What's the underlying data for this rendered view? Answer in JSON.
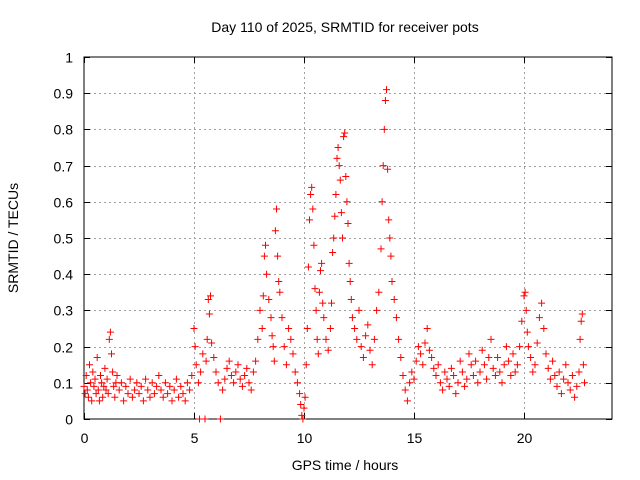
{
  "chart_data": {
    "type": "scatter",
    "title": "Day 110 of 2025, SRMTID for receiver pots",
    "xlabel": "GPS time / hours",
    "ylabel": "SRMTID / TECUs",
    "xlim": [
      0,
      24
    ],
    "ylim": [
      0,
      1
    ],
    "xticks": [
      0,
      5,
      10,
      15,
      20
    ],
    "yticks": [
      0,
      0.1,
      0.2,
      0.3,
      0.4,
      0.5,
      0.6,
      0.7,
      0.8,
      0.9,
      1
    ],
    "grid": true,
    "marker": "+",
    "color": "#ff0000",
    "series": [
      {
        "name": "SRMTID",
        "points": [
          [
            0.0,
            0.09
          ],
          [
            0.05,
            0.07
          ],
          [
            0.1,
            0.12
          ],
          [
            0.15,
            0.08
          ],
          [
            0.2,
            0.06
          ],
          [
            0.25,
            0.15
          ],
          [
            0.3,
            0.1
          ],
          [
            0.35,
            0.05
          ],
          [
            0.4,
            0.13
          ],
          [
            0.45,
            0.09
          ],
          [
            0.5,
            0.11
          ],
          [
            0.55,
            0.07
          ],
          [
            0.6,
            0.17
          ],
          [
            0.65,
            0.08
          ],
          [
            0.7,
            0.05
          ],
          [
            0.75,
            0.12
          ],
          [
            0.8,
            0.1
          ],
          [
            0.85,
            0.06
          ],
          [
            0.9,
            0.09
          ],
          [
            0.95,
            0.14
          ],
          [
            1.0,
            0.08
          ],
          [
            1.05,
            0.11
          ],
          [
            1.1,
            0.07
          ],
          [
            1.15,
            0.22
          ],
          [
            1.2,
            0.24
          ],
          [
            1.25,
            0.18
          ],
          [
            1.3,
            0.13
          ],
          [
            1.35,
            0.09
          ],
          [
            1.4,
            0.06
          ],
          [
            1.45,
            0.1
          ],
          [
            1.5,
            0.12
          ],
          [
            1.6,
            0.08
          ],
          [
            1.7,
            0.1
          ],
          [
            1.8,
            0.05
          ],
          [
            1.9,
            0.09
          ],
          [
            2.0,
            0.07
          ],
          [
            2.1,
            0.11
          ],
          [
            2.2,
            0.06
          ],
          [
            2.3,
            0.08
          ],
          [
            2.4,
            0.1
          ],
          [
            2.5,
            0.07
          ],
          [
            2.6,
            0.09
          ],
          [
            2.7,
            0.05
          ],
          [
            2.8,
            0.11
          ],
          [
            2.9,
            0.08
          ],
          [
            3.0,
            0.06
          ],
          [
            3.1,
            0.1
          ],
          [
            3.2,
            0.07
          ],
          [
            3.3,
            0.09
          ],
          [
            3.4,
            0.12
          ],
          [
            3.5,
            0.08
          ],
          [
            3.6,
            0.06
          ],
          [
            3.7,
            0.1
          ],
          [
            3.8,
            0.07
          ],
          [
            3.9,
            0.09
          ],
          [
            4.0,
            0.05
          ],
          [
            4.1,
            0.08
          ],
          [
            4.2,
            0.11
          ],
          [
            4.3,
            0.06
          ],
          [
            4.4,
            0.09
          ],
          [
            4.5,
            0.07
          ],
          [
            4.6,
            0.05
          ],
          [
            4.7,
            0.1
          ],
          [
            4.8,
            0.08
          ],
          [
            4.9,
            0.12
          ],
          [
            5.0,
            0.25
          ],
          [
            5.05,
            0.2
          ],
          [
            5.1,
            0.15
          ],
          [
            5.2,
            0.1
          ],
          [
            5.25,
            0.0
          ],
          [
            5.3,
            0.13
          ],
          [
            5.4,
            0.18
          ],
          [
            5.5,
            0.0
          ],
          [
            5.55,
            0.16
          ],
          [
            5.6,
            0.22
          ],
          [
            5.65,
            0.33
          ],
          [
            5.7,
            0.29
          ],
          [
            5.75,
            0.34
          ],
          [
            5.8,
            0.21
          ],
          [
            5.9,
            0.17
          ],
          [
            6.0,
            0.13
          ],
          [
            6.1,
            0.1
          ],
          [
            6.2,
            0.0
          ],
          [
            6.3,
            0.08
          ],
          [
            6.4,
            0.11
          ],
          [
            6.5,
            0.14
          ],
          [
            6.6,
            0.16
          ],
          [
            6.7,
            0.12
          ],
          [
            6.8,
            0.1
          ],
          [
            6.9,
            0.13
          ],
          [
            7.0,
            0.15
          ],
          [
            7.1,
            0.11
          ],
          [
            7.2,
            0.09
          ],
          [
            7.3,
            0.12
          ],
          [
            7.4,
            0.14
          ],
          [
            7.5,
            0.1
          ],
          [
            7.6,
            0.08
          ],
          [
            7.7,
            0.13
          ],
          [
            7.8,
            0.16
          ],
          [
            7.9,
            0.22
          ],
          [
            8.0,
            0.3
          ],
          [
            8.1,
            0.25
          ],
          [
            8.15,
            0.34
          ],
          [
            8.2,
            0.45
          ],
          [
            8.25,
            0.48
          ],
          [
            8.3,
            0.4
          ],
          [
            8.4,
            0.33
          ],
          [
            8.5,
            0.28
          ],
          [
            8.55,
            0.23
          ],
          [
            8.6,
            0.2
          ],
          [
            8.65,
            0.16
          ],
          [
            8.7,
            0.52
          ],
          [
            8.75,
            0.58
          ],
          [
            8.8,
            0.45
          ],
          [
            8.85,
            0.38
          ],
          [
            8.9,
            0.35
          ],
          [
            9.0,
            0.28
          ],
          [
            9.1,
            0.2
          ],
          [
            9.2,
            0.15
          ],
          [
            9.3,
            0.25
          ],
          [
            9.4,
            0.22
          ],
          [
            9.5,
            0.18
          ],
          [
            9.6,
            0.13
          ],
          [
            9.7,
            0.1
          ],
          [
            9.8,
            0.07
          ],
          [
            9.85,
            0.04
          ],
          [
            9.9,
            0.01
          ],
          [
            9.95,
            0.0
          ],
          [
            10.0,
            0.03
          ],
          [
            10.05,
            0.06
          ],
          [
            10.1,
            0.15
          ],
          [
            10.15,
            0.25
          ],
          [
            10.2,
            0.42
          ],
          [
            10.25,
            0.55
          ],
          [
            10.3,
            0.62
          ],
          [
            10.35,
            0.64
          ],
          [
            10.4,
            0.58
          ],
          [
            10.45,
            0.48
          ],
          [
            10.5,
            0.36
          ],
          [
            10.55,
            0.3
          ],
          [
            10.6,
            0.22
          ],
          [
            10.65,
            0.18
          ],
          [
            10.7,
            0.35
          ],
          [
            10.75,
            0.41
          ],
          [
            10.8,
            0.43
          ],
          [
            10.85,
            0.32
          ],
          [
            10.9,
            0.28
          ],
          [
            11.0,
            0.22
          ],
          [
            11.1,
            0.19
          ],
          [
            11.2,
            0.25
          ],
          [
            11.25,
            0.32
          ],
          [
            11.3,
            0.46
          ],
          [
            11.35,
            0.5
          ],
          [
            11.4,
            0.56
          ],
          [
            11.45,
            0.62
          ],
          [
            11.5,
            0.72
          ],
          [
            11.55,
            0.75
          ],
          [
            11.6,
            0.7
          ],
          [
            11.65,
            0.66
          ],
          [
            11.7,
            0.57
          ],
          [
            11.75,
            0.5
          ],
          [
            11.8,
            0.78
          ],
          [
            11.85,
            0.79
          ],
          [
            11.9,
            0.67
          ],
          [
            11.95,
            0.6
          ],
          [
            12.0,
            0.54
          ],
          [
            12.05,
            0.43
          ],
          [
            12.1,
            0.38
          ],
          [
            12.15,
            0.33
          ],
          [
            12.2,
            0.28
          ],
          [
            12.3,
            0.25
          ],
          [
            12.4,
            0.22
          ],
          [
            12.5,
            0.3
          ],
          [
            12.6,
            0.2
          ],
          [
            12.7,
            0.17
          ],
          [
            12.8,
            0.23
          ],
          [
            12.9,
            0.26
          ],
          [
            13.0,
            0.19
          ],
          [
            13.1,
            0.15
          ],
          [
            13.2,
            0.22
          ],
          [
            13.3,
            0.3
          ],
          [
            13.4,
            0.35
          ],
          [
            13.5,
            0.47
          ],
          [
            13.55,
            0.6
          ],
          [
            13.6,
            0.7
          ],
          [
            13.65,
            0.8
          ],
          [
            13.7,
            0.88
          ],
          [
            13.75,
            0.91
          ],
          [
            13.8,
            0.69
          ],
          [
            13.85,
            0.55
          ],
          [
            13.9,
            0.5
          ],
          [
            13.95,
            0.45
          ],
          [
            14.0,
            0.38
          ],
          [
            14.1,
            0.33
          ],
          [
            14.2,
            0.28
          ],
          [
            14.3,
            0.22
          ],
          [
            14.4,
            0.17
          ],
          [
            14.5,
            0.12
          ],
          [
            14.6,
            0.08
          ],
          [
            14.7,
            0.05
          ],
          [
            14.8,
            0.1
          ],
          [
            14.9,
            0.13
          ],
          [
            15.0,
            0.11
          ],
          [
            15.1,
            0.16
          ],
          [
            15.2,
            0.2
          ],
          [
            15.3,
            0.18
          ],
          [
            15.4,
            0.15
          ],
          [
            15.5,
            0.21
          ],
          [
            15.6,
            0.25
          ],
          [
            15.7,
            0.19
          ],
          [
            15.8,
            0.17
          ],
          [
            15.9,
            0.14
          ],
          [
            16.0,
            0.12
          ],
          [
            16.1,
            0.15
          ],
          [
            16.2,
            0.1
          ],
          [
            16.3,
            0.08
          ],
          [
            16.4,
            0.13
          ],
          [
            16.5,
            0.11
          ],
          [
            16.6,
            0.09
          ],
          [
            16.7,
            0.14
          ],
          [
            16.8,
            0.12
          ],
          [
            16.9,
            0.07
          ],
          [
            17.0,
            0.1
          ],
          [
            17.1,
            0.16
          ],
          [
            17.2,
            0.13
          ],
          [
            17.3,
            0.09
          ],
          [
            17.4,
            0.11
          ],
          [
            17.5,
            0.18
          ],
          [
            17.6,
            0.15
          ],
          [
            17.7,
            0.12
          ],
          [
            17.8,
            0.16
          ],
          [
            17.9,
            0.1
          ],
          [
            18.0,
            0.13
          ],
          [
            18.1,
            0.19
          ],
          [
            18.2,
            0.15
          ],
          [
            18.3,
            0.11
          ],
          [
            18.4,
            0.17
          ],
          [
            18.5,
            0.22
          ],
          [
            18.6,
            0.14
          ],
          [
            18.7,
            0.12
          ],
          [
            18.8,
            0.17
          ],
          [
            18.9,
            0.13
          ],
          [
            19.0,
            0.1
          ],
          [
            19.1,
            0.15
          ],
          [
            19.2,
            0.2
          ],
          [
            19.3,
            0.16
          ],
          [
            19.4,
            0.12
          ],
          [
            19.5,
            0.18
          ],
          [
            19.6,
            0.13
          ],
          [
            19.7,
            0.15
          ],
          [
            19.8,
            0.2
          ],
          [
            19.9,
            0.27
          ],
          [
            20.0,
            0.34
          ],
          [
            20.05,
            0.35
          ],
          [
            20.1,
            0.3
          ],
          [
            20.15,
            0.24
          ],
          [
            20.2,
            0.2
          ],
          [
            20.3,
            0.17
          ],
          [
            20.4,
            0.13
          ],
          [
            20.5,
            0.15
          ],
          [
            20.6,
            0.21
          ],
          [
            20.7,
            0.28
          ],
          [
            20.8,
            0.32
          ],
          [
            20.9,
            0.25
          ],
          [
            21.0,
            0.18
          ],
          [
            21.1,
            0.14
          ],
          [
            21.2,
            0.11
          ],
          [
            21.3,
            0.16
          ],
          [
            21.4,
            0.12
          ],
          [
            21.5,
            0.09
          ],
          [
            21.6,
            0.13
          ],
          [
            21.7,
            0.07
          ],
          [
            21.8,
            0.11
          ],
          [
            21.9,
            0.15
          ],
          [
            22.0,
            0.1
          ],
          [
            22.1,
            0.08
          ],
          [
            22.2,
            0.12
          ],
          [
            22.3,
            0.06
          ],
          [
            22.4,
            0.09
          ],
          [
            22.5,
            0.13
          ],
          [
            22.55,
            0.22
          ],
          [
            22.6,
            0.27
          ],
          [
            22.65,
            0.29
          ],
          [
            22.7,
            0.15
          ],
          [
            22.75,
            0.1
          ]
        ]
      }
    ]
  }
}
